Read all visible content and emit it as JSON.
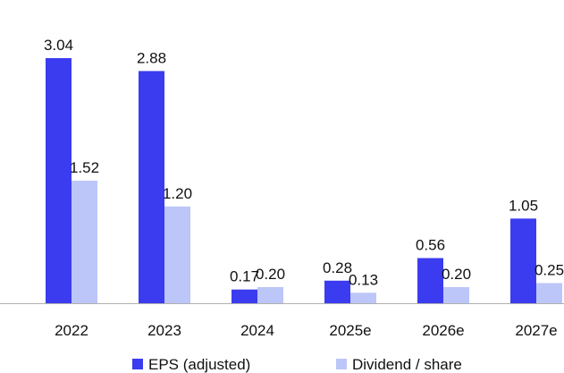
{
  "chart_data": {
    "type": "bar",
    "title": "",
    "xlabel": "",
    "ylabel": "",
    "categories": [
      "2022",
      "2023",
      "2024",
      "2025e",
      "2026e",
      "2027e"
    ],
    "series": [
      {
        "name": "EPS (adjusted)",
        "values": [
          3.04,
          2.88,
          0.17,
          0.28,
          0.56,
          1.05
        ],
        "labels": [
          "3.04",
          "2.88",
          "0.17",
          "0.28",
          "0.56",
          "1.05"
        ],
        "color": "#3b3bf0"
      },
      {
        "name": "Dividend / share",
        "values": [
          1.52,
          1.2,
          0.2,
          0.13,
          0.2,
          0.25
        ],
        "labels": [
          "1.52",
          "1.20",
          "0.20",
          "0.13",
          "0.20",
          "0.25"
        ],
        "color": "#bcc6f8"
      }
    ],
    "ylim": [
      0,
      3.04
    ],
    "grid": false,
    "legend_position": "bottom"
  }
}
